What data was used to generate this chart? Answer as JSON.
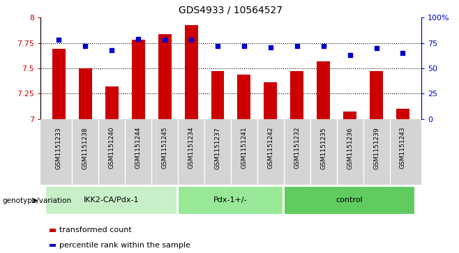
{
  "title": "GDS4933 / 10564527",
  "samples": [
    "GSM1151233",
    "GSM1151238",
    "GSM1151240",
    "GSM1151244",
    "GSM1151245",
    "GSM1151234",
    "GSM1151237",
    "GSM1151241",
    "GSM1151242",
    "GSM1151232",
    "GSM1151235",
    "GSM1151236",
    "GSM1151239",
    "GSM1151243"
  ],
  "red_values": [
    7.69,
    7.5,
    7.32,
    7.78,
    7.84,
    7.93,
    7.47,
    7.44,
    7.36,
    7.47,
    7.57,
    7.07,
    7.47,
    7.1
  ],
  "blue_values": [
    78,
    72,
    68,
    79,
    78,
    78,
    72,
    72,
    71,
    72,
    72,
    63,
    70,
    65
  ],
  "ylim_left": [
    7.0,
    8.0
  ],
  "ylim_right": [
    0,
    100
  ],
  "yticks_left": [
    7.0,
    7.25,
    7.5,
    7.75,
    8.0
  ],
  "yticks_right": [
    0,
    25,
    50,
    75,
    100
  ],
  "ytick_labels_left": [
    "7",
    "7.25",
    "7.5",
    "7.75",
    "8"
  ],
  "ytick_labels_right": [
    "0",
    "25",
    "50",
    "75",
    "100%"
  ],
  "groups": [
    {
      "label": "IKK2-CA/Pdx-1",
      "start": 0,
      "end": 5,
      "color": "#c8f0c8"
    },
    {
      "label": "Pdx-1+/-",
      "start": 5,
      "end": 9,
      "color": "#98e898"
    },
    {
      "label": "control",
      "start": 9,
      "end": 14,
      "color": "#60cc60"
    }
  ],
  "group_label": "genotype/variation",
  "legend_red_label": "transformed count",
  "legend_blue_label": "percentile rank within the sample",
  "bar_color": "#cc0000",
  "dot_color": "#0000cc",
  "bg_color": "#ffffff",
  "tick_color_left": "#cc0000",
  "tick_color_right": "#0000cc",
  "sample_bg_color": "#d4d4d4",
  "grid_yticks": [
    7.25,
    7.5,
    7.75
  ]
}
